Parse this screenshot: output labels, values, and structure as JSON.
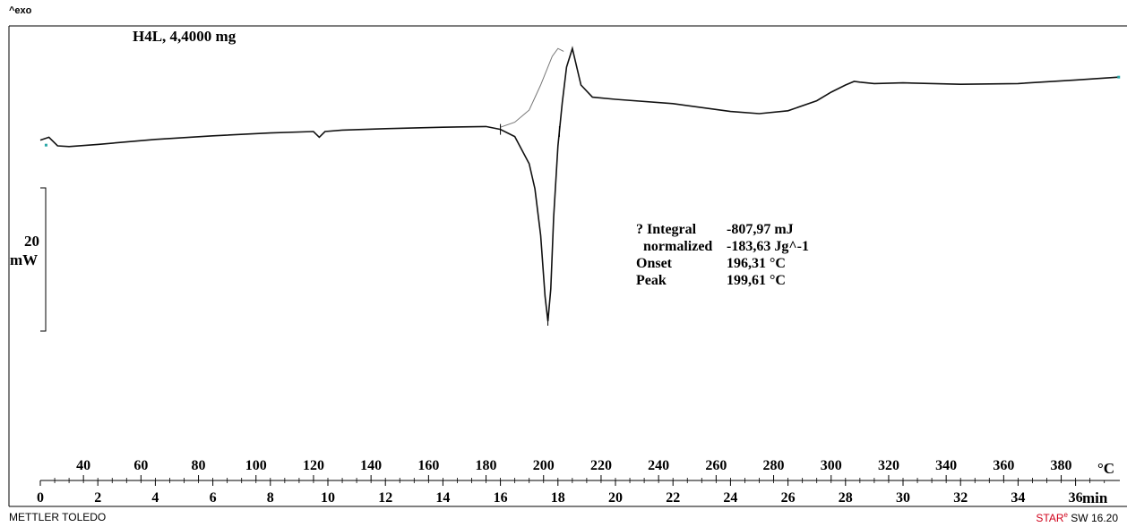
{
  "header": {
    "exo_label": "^exo"
  },
  "footer": {
    "brand_left": "METTLER TOLEDO",
    "brand_right_prefix": "STAR",
    "brand_right_sup": "e",
    "brand_right_suffix": " SW 16.20"
  },
  "chart_data": {
    "type": "line",
    "title": "H4L, 4,4000 mg",
    "scale_bar": {
      "value": "20",
      "unit": "mW"
    },
    "temperature_axis": {
      "unit": "°C",
      "ticks": [
        40,
        60,
        80,
        100,
        120,
        140,
        160,
        180,
        200,
        220,
        240,
        260,
        280,
        300,
        320,
        340,
        360,
        380
      ]
    },
    "time_axis": {
      "unit": "min",
      "range": [
        0,
        37.5
      ],
      "ticks": [
        0,
        2,
        4,
        6,
        8,
        10,
        12,
        14,
        16,
        18,
        20,
        22,
        24,
        26,
        28,
        30,
        32,
        34,
        36
      ]
    },
    "series": [
      {
        "values_x_min": [
          0,
          0.3,
          0.6,
          1,
          2,
          4,
          6,
          8,
          9.5,
          9.7,
          9.9,
          10.5,
          12,
          14,
          15.5,
          16,
          16.5,
          17,
          17.2,
          17.4,
          17.55,
          17.65,
          17.75,
          17.85,
          18,
          18.15,
          18.3,
          18.5,
          18.8,
          19.2,
          20,
          22,
          24,
          25,
          26,
          27,
          27.5,
          28,
          28.3,
          28.5,
          29,
          30,
          32,
          34,
          36,
          37.5
        ],
        "values_y_mW": [
          0.8,
          1.2,
          0,
          -0.1,
          0.2,
          0.9,
          1.4,
          1.8,
          2.0,
          1.2,
          2.0,
          2.2,
          2.4,
          2.6,
          2.7,
          2.3,
          1.3,
          -2.5,
          -6.0,
          -12.5,
          -21.0,
          -24.5,
          -20,
          -10,
          0,
          6,
          11,
          13.6,
          8.5,
          6.8,
          6.5,
          5.9,
          4.8,
          4.5,
          4.9,
          6.3,
          7.5,
          8.5,
          9.0,
          8.9,
          8.7,
          8.8,
          8.6,
          8.7,
          9.2,
          9.6
        ]
      },
      {
        "values_x_min": [
          16,
          16.5,
          17,
          17.4,
          17.8,
          18,
          18.2
        ],
        "values_y_mW": [
          2.6,
          3.3,
          5.0,
          8.5,
          12.5,
          13.6,
          13.2
        ]
      }
    ],
    "annotations": [
      {
        "label": "? Integral",
        "value": "-807,97 mJ"
      },
      {
        "label": "  normalized",
        "value": "-183,63 Jg^-1"
      },
      {
        "label": "Onset",
        "value": "196,31 °C"
      },
      {
        "label": "Peak",
        "value": "199,61 °C"
      }
    ]
  }
}
